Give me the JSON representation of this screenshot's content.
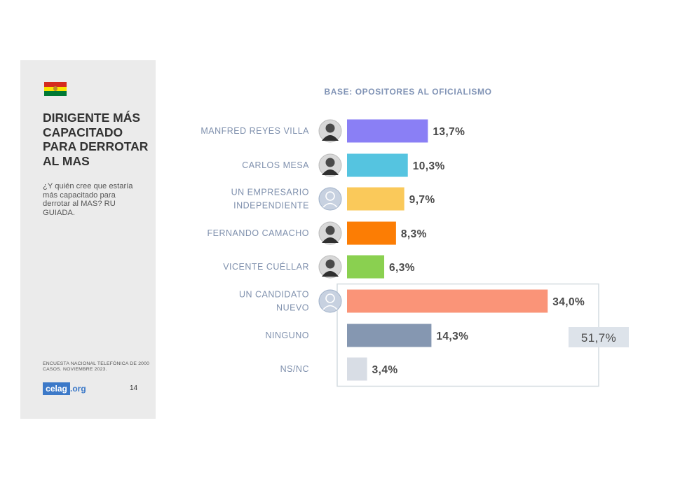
{
  "sidebar": {
    "title": "DIRIGENTE MÁS CAPACITADO PARA DERROTAR AL MAS",
    "question": "¿Y quién cree que estaría más capacitado para derrotar al MAS? RU GUIADA.",
    "source": "ENCUESTA NACIONAL TELEFÓNICA DE 2000 CASOS. NOVIEMBRE 2023.",
    "logo_main": "celag",
    "logo_suffix": ".org",
    "page_number": "14",
    "flag_colors": [
      "#d52b1e",
      "#f9e300",
      "#007934"
    ]
  },
  "chart_data": {
    "type": "bar",
    "orientation": "horizontal",
    "title": "BASE: OPOSITORES AL OFICIALISMO",
    "categories": [
      {
        "label": [
          "MANFRED REYES VILLA"
        ],
        "avatar": "photo",
        "avatar_icon": "person-photo-icon"
      },
      {
        "label": [
          "CARLOS MESA"
        ],
        "avatar": "photo",
        "avatar_icon": "person-photo-icon"
      },
      {
        "label": [
          "UN EMPRESARIO",
          "INDEPENDIENTE"
        ],
        "avatar": "placeholder",
        "avatar_icon": "person-placeholder-icon"
      },
      {
        "label": [
          "FERNANDO CAMACHO"
        ],
        "avatar": "photo",
        "avatar_icon": "person-photo-icon"
      },
      {
        "label": [
          "VICENTE CUÉLLAR"
        ],
        "avatar": "photo",
        "avatar_icon": "person-photo-icon"
      },
      {
        "label": [
          "UN CANDIDATO",
          "NUEVO"
        ],
        "avatar": "placeholder",
        "avatar_icon": "person-placeholder-icon"
      },
      {
        "label": [
          "NINGUNO"
        ],
        "avatar": "none"
      },
      {
        "label": [
          "NS/NC"
        ],
        "avatar": "none"
      }
    ],
    "values": [
      13.7,
      10.3,
      9.7,
      8.3,
      6.3,
      34.0,
      14.3,
      3.4
    ],
    "value_labels": [
      "13,7%",
      "10,3%",
      "9,7%",
      "8,3%",
      "6,3%",
      "34,0%",
      "14,3%",
      "3,4%"
    ],
    "colors": [
      "#8a7ff5",
      "#55c4e0",
      "#fac95a",
      "#fc7d04",
      "#8ad050",
      "#fa9478",
      "#8597b1",
      "#d8dde5"
    ],
    "grouped_total": {
      "label": "51,7%",
      "value": 51.7,
      "grouped_categories": [
        "UN CANDIDATO NUEVO",
        "NINGUNO",
        "NS/NC"
      ]
    },
    "xlim": [
      0,
      40
    ],
    "grid": false,
    "legend": "none"
  }
}
